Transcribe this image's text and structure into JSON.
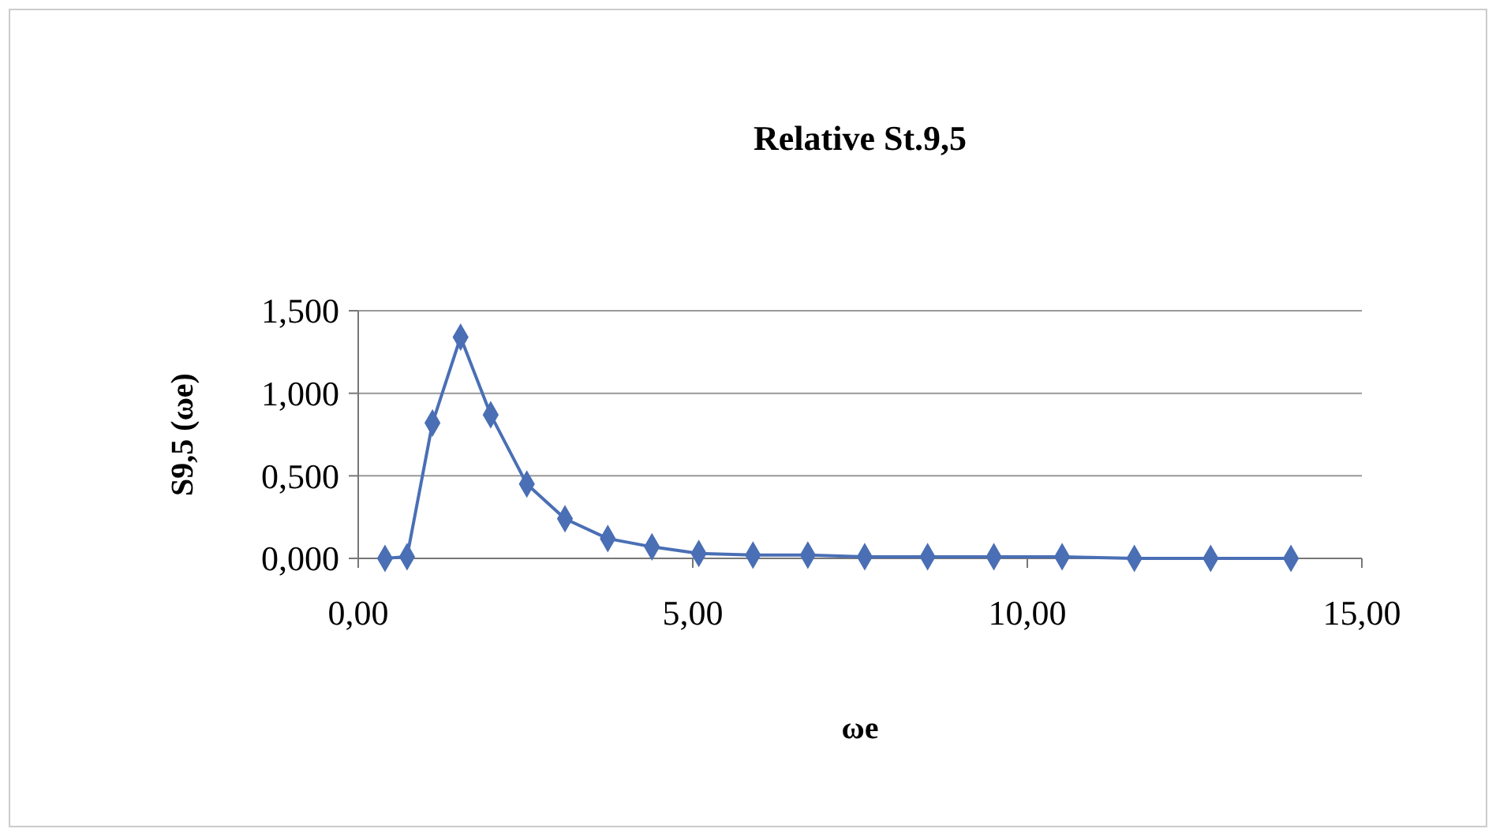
{
  "chart_data": {
    "type": "line",
    "title": "Relative St.9,5",
    "xlabel": "ωe",
    "ylabel": "S9,5 (ωe)",
    "series": [
      {
        "color": "#4a6fb5",
        "x": [
          0.4,
          0.73,
          1.11,
          1.53,
          1.98,
          2.52,
          3.09,
          3.73,
          4.39,
          5.09,
          5.9,
          6.72,
          7.57,
          8.51,
          9.5,
          10.52,
          11.6,
          12.74,
          13.94
        ],
        "values": [
          0,
          0.01,
          0.82,
          1.34,
          0.87,
          0.45,
          0.24,
          0.12,
          0.07,
          0.03,
          0.02,
          0.02,
          0.01,
          0.01,
          0.01,
          0.01,
          0,
          0,
          0
        ]
      }
    ],
    "xlim": [
      0,
      15
    ],
    "xticks": [
      {
        "value": 0,
        "label": "0,00"
      },
      {
        "value": 5,
        "label": "5,00"
      },
      {
        "value": 10,
        "label": "10,00"
      },
      {
        "value": 15,
        "label": "15,00"
      }
    ],
    "ylim": [
      0,
      1.5
    ],
    "yticks": [
      {
        "value": 0,
        "label": "0,000"
      },
      {
        "value": 0.5,
        "label": "0,500"
      },
      {
        "value": 1,
        "label": "1,000"
      },
      {
        "value": 1.5,
        "label": "1,500"
      }
    ],
    "grid": "y",
    "marker": "diamond",
    "line_style": "solid"
  }
}
